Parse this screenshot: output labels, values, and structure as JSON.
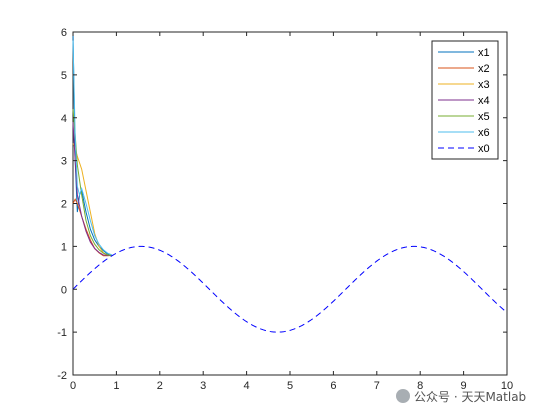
{
  "chart_data": {
    "type": "line",
    "xlim": [
      0,
      10
    ],
    "ylim": [
      -2,
      6
    ],
    "x_ticks": [
      "0",
      "1",
      "2",
      "3",
      "4",
      "5",
      "6",
      "7",
      "8",
      "9",
      "10"
    ],
    "y_ticks": [
      "-2",
      "-1",
      "0",
      "1",
      "2",
      "3",
      "4",
      "5",
      "6"
    ],
    "grid": false,
    "legend_position": "top-right",
    "series": [
      {
        "name": "x1",
        "color": "#0072BD",
        "dash": "solid",
        "x": [
          0,
          0.05,
          0.1,
          0.15,
          0.2,
          0.3,
          0.4,
          0.5,
          0.6,
          0.7,
          0.8,
          0.9
        ],
        "y": [
          6.0,
          3.0,
          1.8,
          2.2,
          2.3,
          1.8,
          1.4,
          1.15,
          1.0,
          0.9,
          0.82,
          0.78
        ]
      },
      {
        "name": "x2",
        "color": "#D95319",
        "dash": "solid",
        "x": [
          0,
          0.05,
          0.1,
          0.2,
          0.3,
          0.4,
          0.5,
          0.6,
          0.7,
          0.8,
          0.9
        ],
        "y": [
          2.0,
          2.1,
          2.0,
          1.7,
          1.4,
          1.15,
          0.95,
          0.85,
          0.78,
          0.78,
          0.79
        ]
      },
      {
        "name": "x3",
        "color": "#EDB120",
        "dash": "solid",
        "x": [
          0,
          0.05,
          0.1,
          0.2,
          0.3,
          0.4,
          0.5,
          0.6,
          0.7,
          0.8,
          0.9
        ],
        "y": [
          3.4,
          3.3,
          3.1,
          2.8,
          2.3,
          1.8,
          1.3,
          1.0,
          0.85,
          0.8,
          0.79
        ]
      },
      {
        "name": "x4",
        "color": "#7E2F8E",
        "dash": "solid",
        "x": [
          0,
          0.05,
          0.1,
          0.2,
          0.3,
          0.4,
          0.5,
          0.6,
          0.7,
          0.8,
          0.9
        ],
        "y": [
          3.9,
          3.0,
          2.2,
          1.7,
          1.35,
          1.1,
          0.95,
          0.86,
          0.8,
          0.79,
          0.79
        ]
      },
      {
        "name": "x5",
        "color": "#77AC30",
        "dash": "solid",
        "x": [
          0,
          0.05,
          0.1,
          0.2,
          0.3,
          0.4,
          0.5,
          0.6,
          0.7,
          0.8,
          0.9
        ],
        "y": [
          4.2,
          3.6,
          2.9,
          2.2,
          1.6,
          1.25,
          1.05,
          0.92,
          0.84,
          0.8,
          0.79
        ]
      },
      {
        "name": "x6",
        "color": "#4DBEEE",
        "dash": "solid",
        "x": [
          0,
          0.05,
          0.1,
          0.15,
          0.2,
          0.3,
          0.4,
          0.5,
          0.6,
          0.7,
          0.8,
          0.9
        ],
        "y": [
          5.8,
          3.6,
          2.4,
          2.2,
          2.35,
          2.0,
          1.6,
          1.25,
          1.05,
          0.92,
          0.84,
          0.8
        ]
      },
      {
        "name": "x0",
        "color": "#0000FF",
        "dash": "dashed",
        "function": "sin(x)",
        "domain": [
          0,
          10
        ]
      }
    ]
  },
  "watermark": {
    "text": "公众号 · 天天Matlab",
    "icon": "wechat-icon"
  }
}
